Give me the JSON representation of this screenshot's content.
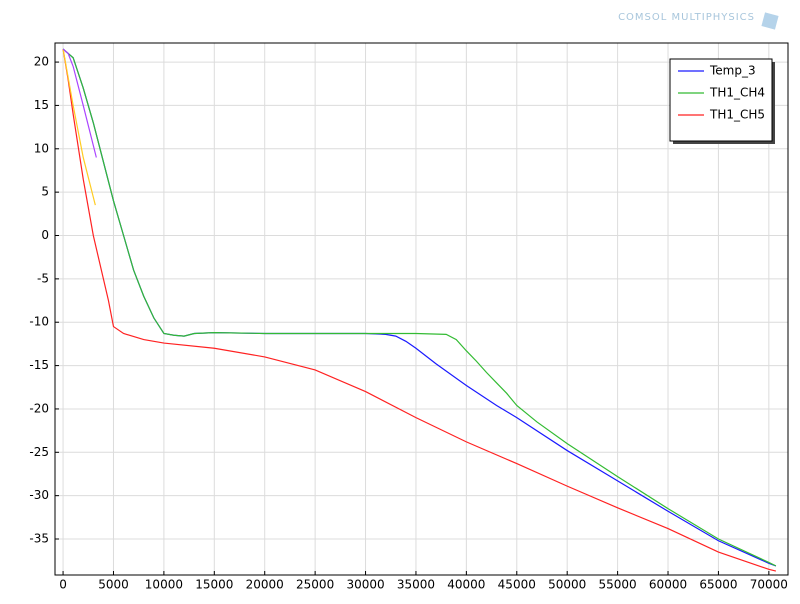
{
  "chart_data": {
    "type": "line",
    "watermark": "COMSOL MULTIPHYSICS",
    "xlim": [
      -800,
      71900
    ],
    "ylim": [
      -39.15,
      22.2
    ],
    "xticks": [
      0,
      5000,
      10000,
      15000,
      20000,
      25000,
      30000,
      35000,
      40000,
      45000,
      50000,
      55000,
      60000,
      65000,
      70000
    ],
    "yticks": [
      -35,
      -30,
      -25,
      -20,
      -15,
      -10,
      -5,
      0,
      5,
      10,
      15,
      20
    ],
    "grid": true,
    "legend": "top-right",
    "series": [
      {
        "name": "Temp_3",
        "color": "#1a1aff",
        "x": [
          0,
          1000,
          2000,
          3000,
          4000,
          5000,
          6000,
          7000,
          8000,
          9000,
          10000,
          11000,
          12000,
          13000,
          15000,
          20000,
          25000,
          30000,
          32000,
          33000,
          34000,
          35000,
          37000,
          40000,
          43000,
          45000,
          50000,
          55000,
          60000,
          65000,
          70000,
          70700
        ],
        "values": [
          21.5,
          20.5,
          17,
          13,
          8.5,
          4,
          0,
          -4,
          -7,
          -9.5,
          -11.3,
          -11.5,
          -11.6,
          -11.3,
          -11.2,
          -11.3,
          -11.3,
          -11.3,
          -11.4,
          -11.6,
          -12.2,
          -13,
          -14.8,
          -17.3,
          -19.6,
          -21,
          -24.8,
          -28.3,
          -31.8,
          -35.2,
          -37.8,
          -38.1
        ]
      },
      {
        "name": "TH1_CH4",
        "color": "#33bb33",
        "x": [
          0,
          1000,
          2000,
          3000,
          4000,
          5000,
          6000,
          7000,
          8000,
          9000,
          10000,
          11000,
          12000,
          13000,
          15000,
          20000,
          25000,
          30000,
          35000,
          38000,
          39000,
          40000,
          41000,
          42000,
          43000,
          44000,
          45000,
          47000,
          50000,
          55000,
          60000,
          65000,
          70000,
          70700
        ],
        "values": [
          21.5,
          20.5,
          17,
          13,
          8.5,
          4,
          0,
          -4,
          -7,
          -9.5,
          -11.3,
          -11.5,
          -11.6,
          -11.3,
          -11.2,
          -11.3,
          -11.3,
          -11.3,
          -11.3,
          -11.4,
          -12,
          -13.3,
          -14.5,
          -15.8,
          -17,
          -18.2,
          -19.6,
          -21.5,
          -24,
          -27.8,
          -31.5,
          -35,
          -37.7,
          -38.1
        ]
      },
      {
        "name": "TH1_CH5",
        "color": "#ff2222",
        "x": [
          0,
          500,
          1000,
          2000,
          3000,
          4000,
          4500,
          5000,
          6000,
          8000,
          10000,
          15000,
          20000,
          25000,
          30000,
          35000,
          40000,
          45000,
          50000,
          55000,
          60000,
          65000,
          70000,
          70700
        ],
        "values": [
          21.5,
          18,
          14,
          6.5,
          0,
          -5,
          -7.5,
          -10.5,
          -11.3,
          -12,
          -12.4,
          -13,
          -14,
          -15.5,
          -18,
          -21,
          -23.8,
          -26.3,
          -28.9,
          -31.4,
          -33.8,
          -36.5,
          -38.5,
          -38.7
        ]
      },
      {
        "color": "#ffcc22",
        "x": [
          0,
          1000,
          2000,
          3200
        ],
        "values": [
          21.5,
          15,
          9,
          3.5
        ]
      },
      {
        "color": "#aa44ff",
        "x": [
          0,
          500,
          1000,
          2000,
          3300
        ],
        "values": [
          21.5,
          21,
          19.5,
          15,
          9
        ]
      }
    ]
  }
}
